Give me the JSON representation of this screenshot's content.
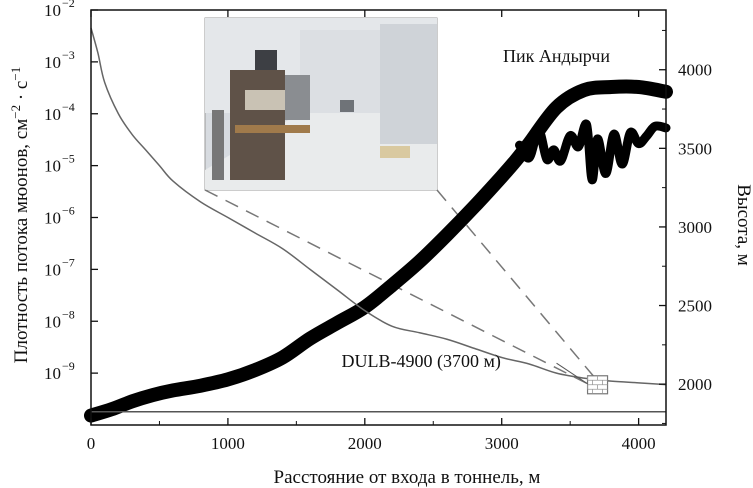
{
  "chart_data": {
    "type": "line",
    "xlabel": "Расстояние от входа в тоннель, м",
    "ylabel_left": "Плотность потока мюонов, см⁻²·с⁻¹",
    "ylabel_right": "Высота, м",
    "xlim": [
      0,
      4200
    ],
    "x_ticks": [
      0,
      1000,
      2000,
      3000,
      4000
    ],
    "ylim_left": [
      1e-10,
      0.01
    ],
    "y_left_scale": "log",
    "y_left_ticks": [
      {
        "exp": -2,
        "label": "10"
      },
      {
        "exp": -3,
        "label": "10"
      },
      {
        "exp": -4,
        "label": "10"
      },
      {
        "exp": -5,
        "label": "10"
      },
      {
        "exp": -6,
        "label": "10"
      },
      {
        "exp": -7,
        "label": "10"
      },
      {
        "exp": -8,
        "label": "10"
      },
      {
        "exp": -9,
        "label": "10"
      }
    ],
    "ylim_right": [
      1740,
      4380
    ],
    "y_right_ticks": [
      2000,
      2500,
      3000,
      3500,
      4000
    ],
    "series": [
      {
        "axis": "right",
        "style": "thick-black",
        "x": [
          0,
          150,
          300,
          450,
          600,
          800,
          1000,
          1200,
          1400,
          1600,
          1800,
          2000,
          2200,
          2400,
          2600,
          2800,
          3000,
          3100,
          3200,
          3400,
          3600,
          3800,
          4000,
          4200
        ],
        "y": [
          1800,
          1840,
          1890,
          1930,
          1960,
          1990,
          2030,
          2090,
          2170,
          2290,
          2390,
          2490,
          2630,
          2780,
          2950,
          3130,
          3320,
          3420,
          3530,
          3760,
          3870,
          3890,
          3890,
          3860
        ]
      },
      {
        "axis": "right",
        "style": "thick-black-wavy",
        "x": [
          3130,
          3200,
          3270,
          3330,
          3380,
          3430,
          3500,
          3560,
          3620,
          3660,
          3700,
          3760,
          3820,
          3880,
          3940,
          4000,
          4060,
          4120,
          4200
        ],
        "y": [
          3520,
          3440,
          3610,
          3430,
          3490,
          3420,
          3580,
          3510,
          3650,
          3300,
          3560,
          3340,
          3590,
          3400,
          3600,
          3530,
          3580,
          3640,
          3630
        ]
      },
      {
        "axis": "left",
        "style": "thin-gray",
        "x": [
          0,
          50,
          100,
          200,
          300,
          400,
          500,
          600,
          800,
          1000,
          1200,
          1400,
          1600,
          1800,
          2000,
          2200,
          2400,
          2600,
          2800,
          3000,
          3200,
          3400,
          3600,
          3800,
          4000,
          4200
        ],
        "y": [
          0.0045,
          0.0015,
          0.0004,
          0.0001,
          4e-05,
          2e-05,
          1e-05,
          5e-06,
          2e-06,
          1e-06,
          5e-07,
          2.5e-07,
          1e-07,
          4e-08,
          1.6e-08,
          8e-09,
          6e-09,
          4.5e-09,
          3e-09,
          2e-09,
          1.5e-09,
          1e-09,
          8e-10,
          7e-10,
          6.5e-10,
          6e-10
        ]
      },
      {
        "axis": "left",
        "style": "baseline",
        "x": [
          0,
          4200
        ],
        "y": [
          1.8e-10,
          1.8e-10
        ]
      }
    ],
    "annotations": [
      {
        "text": "Пик Андырчи",
        "x": 3400,
        "y_right": 4050
      },
      {
        "text": "DULB-4900 (3700 м)",
        "x": 1830,
        "y_left": 1.3e-09
      }
    ],
    "marker": {
      "label": "DULB-4900",
      "x": 3700,
      "y_left": 4e-10
    }
  },
  "inset_photo": {
    "description_colors": {
      "wall": "#d9dde2",
      "floor": "#e7e9ea",
      "rack": "#6b5a4a",
      "bench": "#b08a5a"
    }
  }
}
